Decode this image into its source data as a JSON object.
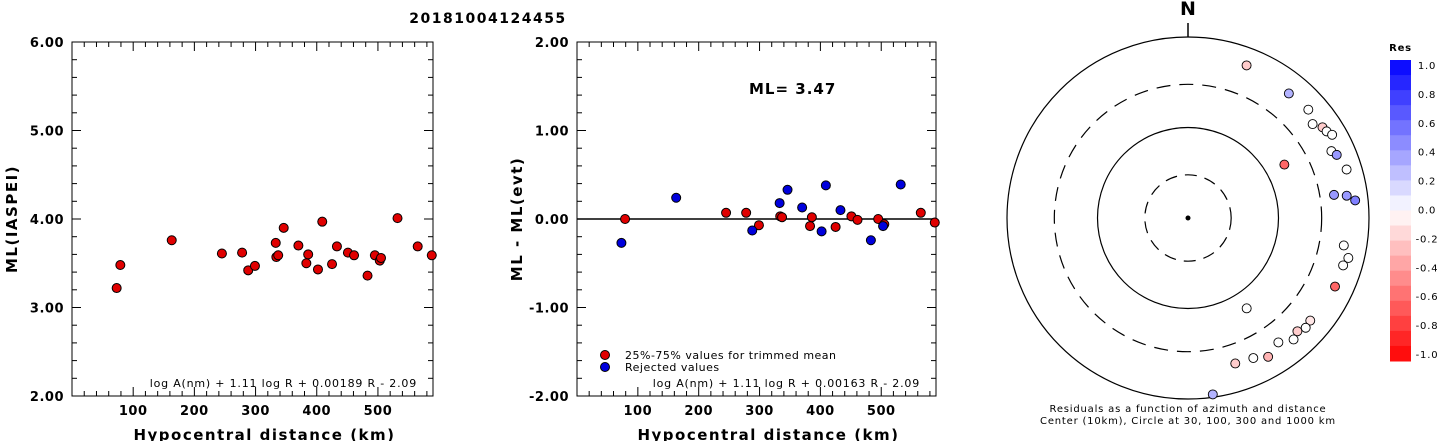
{
  "title": "20181004124455",
  "chart_data": [
    {
      "type": "scatter",
      "ylabel": "ML(IASPEI)",
      "xlabel": "Hypocentral distance (km)",
      "xlim": [
        0,
        590
      ],
      "ylim": [
        2.0,
        6.0
      ],
      "xticks": [
        "100",
        "200",
        "300",
        "400",
        "500"
      ],
      "yticks": [
        "2.00",
        "3.00",
        "4.00",
        "5.00",
        "6.00"
      ],
      "formula": "log A(nm) + 1.11 log R + 0.00189 R - 2.09",
      "series": [
        {
          "color": "#e00000",
          "points": [
            [
              73,
              3.22
            ],
            [
              79,
              3.48
            ],
            [
              163,
              3.76
            ],
            [
              245,
              3.61
            ],
            [
              278,
              3.62
            ],
            [
              288,
              3.42
            ],
            [
              299,
              3.47
            ],
            [
              333,
              3.73
            ],
            [
              334,
              3.57
            ],
            [
              337,
              3.59
            ],
            [
              346,
              3.9
            ],
            [
              370,
              3.7
            ],
            [
              383,
              3.5
            ],
            [
              386,
              3.6
            ],
            [
              402,
              3.43
            ],
            [
              409,
              3.97
            ],
            [
              425,
              3.49
            ],
            [
              433,
              3.69
            ],
            [
              451,
              3.62
            ],
            [
              461,
              3.59
            ],
            [
              483,
              3.36
            ],
            [
              495,
              3.59
            ],
            [
              503,
              3.53
            ],
            [
              505,
              3.56
            ],
            [
              532,
              4.01
            ],
            [
              565,
              3.69
            ],
            [
              588,
              3.59
            ]
          ]
        }
      ]
    },
    {
      "type": "scatter",
      "ylabel": "ML - ML(evt)",
      "xlabel": "Hypocentral distance (km)",
      "xlim": [
        0,
        590
      ],
      "ylim": [
        -2.0,
        2.0
      ],
      "xticks": [
        "100",
        "200",
        "300",
        "400",
        "500"
      ],
      "yticks": [
        "-2.00",
        "-1.00",
        "0.00",
        "1.00",
        "2.00"
      ],
      "annotation": "ML= 3.47",
      "formula": "log A(nm) + 1.11 log R + 0.00163 R - 2.09",
      "series": [
        {
          "name": "25%-75% values for trimmed mean",
          "color": "#e00000",
          "points": [
            [
              79,
              0.0
            ],
            [
              245,
              0.07
            ],
            [
              278,
              0.07
            ],
            [
              299,
              -0.07
            ],
            [
              334,
              0.03
            ],
            [
              337,
              0.02
            ],
            [
              383,
              -0.08
            ],
            [
              386,
              0.02
            ],
            [
              425,
              -0.09
            ],
            [
              451,
              0.03
            ],
            [
              461,
              -0.01
            ],
            [
              495,
              0.0
            ],
            [
              505,
              -0.06
            ],
            [
              565,
              0.07
            ],
            [
              588,
              -0.04
            ]
          ]
        },
        {
          "name": "Rejected values",
          "color": "#0000dd",
          "points": [
            [
              73,
              -0.27
            ],
            [
              163,
              0.24
            ],
            [
              288,
              -0.13
            ],
            [
              333,
              0.18
            ],
            [
              346,
              0.33
            ],
            [
              370,
              0.13
            ],
            [
              402,
              -0.14
            ],
            [
              409,
              0.38
            ],
            [
              433,
              0.1
            ],
            [
              483,
              -0.24
            ],
            [
              503,
              -0.08
            ],
            [
              532,
              0.39
            ]
          ]
        }
      ]
    },
    {
      "type": "polar-scatter",
      "north_label": "N",
      "caption_line1": "Residuals as a function of azimuth and distance",
      "caption_line2": "Center (10km), Circle at 30, 100, 300 and 1000 km",
      "rings_km": [
        30,
        100,
        300,
        1000
      ],
      "points": [
        {
          "azimuth_deg": 21,
          "distance_km": 640,
          "res": -0.2
        },
        {
          "azimuth_deg": 39,
          "distance_km": 590,
          "res": 0.3
        },
        {
          "azimuth_deg": 48,
          "distance_km": 615,
          "res": 0.0
        },
        {
          "azimuth_deg": 53,
          "distance_km": 530,
          "res": 0.0
        },
        {
          "azimuth_deg": 56,
          "distance_km": 620,
          "res": -0.2
        },
        {
          "azimuth_deg": 58,
          "distance_km": 640,
          "res": 0.0
        },
        {
          "azimuth_deg": 60,
          "distance_km": 690,
          "res": 0.0
        },
        {
          "azimuth_deg": 61,
          "distance_km": 165,
          "res": -0.6
        },
        {
          "azimuth_deg": 65,
          "distance_km": 560,
          "res": 0.0
        },
        {
          "azimuth_deg": 67,
          "distance_km": 610,
          "res": 0.4
        },
        {
          "azimuth_deg": 73,
          "distance_km": 680,
          "res": 0.0
        },
        {
          "azimuth_deg": 81,
          "distance_km": 430,
          "res": 0.4
        },
        {
          "azimuth_deg": 82,
          "distance_km": 590,
          "res": 0.4
        },
        {
          "azimuth_deg": 84,
          "distance_km": 720,
          "res": 0.5
        },
        {
          "azimuth_deg": 100,
          "distance_km": 560,
          "res": 0.0
        },
        {
          "azimuth_deg": 104,
          "distance_km": 670,
          "res": 0.0
        },
        {
          "azimuth_deg": 107,
          "distance_km": 620,
          "res": 0.0
        },
        {
          "azimuth_deg": 115,
          "distance_km": 620,
          "res": -0.6
        },
        {
          "azimuth_deg": 130,
          "distance_km": 580,
          "res": -0.1
        },
        {
          "azimuth_deg": 133,
          "distance_km": 600,
          "res": 0.0
        },
        {
          "azimuth_deg": 136,
          "distance_km": 550,
          "res": -0.2
        },
        {
          "azimuth_deg": 139,
          "distance_km": 600,
          "res": 0.0
        },
        {
          "azimuth_deg": 144,
          "distance_km": 500,
          "res": 0.0
        },
        {
          "azimuth_deg": 147,
          "distance_km": 155,
          "res": 0.0
        },
        {
          "azimuth_deg": 150,
          "distance_km": 590,
          "res": -0.3
        },
        {
          "azimuth_deg": 155,
          "distance_km": 510,
          "res": 0.0
        },
        {
          "azimuth_deg": 162,
          "distance_km": 490,
          "res": -0.2
        },
        {
          "azimuth_deg": 172,
          "distance_km": 930,
          "res": 0.3
        }
      ]
    }
  ],
  "colorbar": {
    "title": "Res",
    "labels": [
      "1.0",
      "0.8",
      "0.6",
      "0.4",
      "0.2",
      "0.0",
      "-0.2",
      "-0.4",
      "-0.6",
      "-0.8",
      "-1.0"
    ]
  }
}
